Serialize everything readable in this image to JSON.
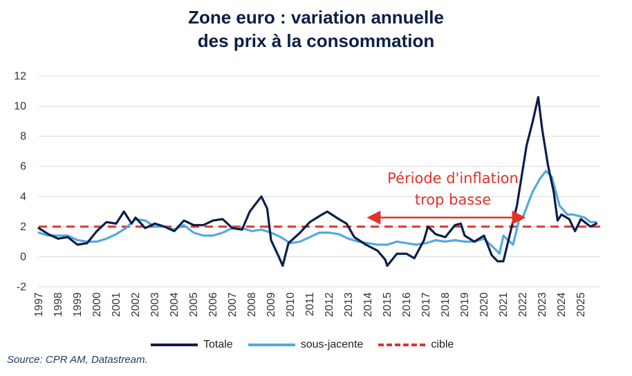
{
  "title_lines": [
    "Zone euro : variation annuelle",
    "des prix à la consommation"
  ],
  "source": "Source: CPR AM, Datastream.",
  "chart_data": {
    "type": "line",
    "title": "Zone euro : variation annuelle des prix à la consommation",
    "xlabel": "",
    "ylabel": "",
    "xlim": [
      1997,
      2026
    ],
    "ylim": [
      -2,
      12
    ],
    "y_ticks": [
      "-2",
      "0",
      "2",
      "4",
      "6",
      "8",
      "10",
      "12"
    ],
    "x_ticks": [
      "1997",
      "1998",
      "1999",
      "2000",
      "2001",
      "2002",
      "2003",
      "2004",
      "2005",
      "2006",
      "2007",
      "2008",
      "2009",
      "2010",
      "2011",
      "2012",
      "2013",
      "2014",
      "2015",
      "2016",
      "2017",
      "2018",
      "2019",
      "2020",
      "2021",
      "2022",
      "2023",
      "2024",
      "2025"
    ],
    "grid": "horizontal",
    "legend_position": "bottom",
    "series": [
      {
        "name": "Totale",
        "color": "#0b1e47",
        "points": [
          [
            1997.0,
            1.9
          ],
          [
            1997.5,
            1.5
          ],
          [
            1998.0,
            1.2
          ],
          [
            1998.5,
            1.3
          ],
          [
            1999.0,
            0.8
          ],
          [
            1999.5,
            0.9
          ],
          [
            2000.0,
            1.7
          ],
          [
            2000.5,
            2.3
          ],
          [
            2001.0,
            2.2
          ],
          [
            2001.4,
            3.0
          ],
          [
            2001.8,
            2.2
          ],
          [
            2002.0,
            2.6
          ],
          [
            2002.5,
            1.9
          ],
          [
            2003.0,
            2.2
          ],
          [
            2003.5,
            2.0
          ],
          [
            2004.0,
            1.7
          ],
          [
            2004.5,
            2.4
          ],
          [
            2005.0,
            2.1
          ],
          [
            2005.5,
            2.1
          ],
          [
            2006.0,
            2.4
          ],
          [
            2006.5,
            2.5
          ],
          [
            2007.0,
            1.9
          ],
          [
            2007.5,
            1.8
          ],
          [
            2007.9,
            3.0
          ],
          [
            2008.2,
            3.5
          ],
          [
            2008.5,
            4.0
          ],
          [
            2008.8,
            3.2
          ],
          [
            2009.0,
            1.1
          ],
          [
            2009.4,
            0.0
          ],
          [
            2009.6,
            -0.6
          ],
          [
            2009.9,
            0.9
          ],
          [
            2010.5,
            1.6
          ],
          [
            2011.0,
            2.3
          ],
          [
            2011.5,
            2.7
          ],
          [
            2011.9,
            3.0
          ],
          [
            2012.5,
            2.5
          ],
          [
            2012.9,
            2.2
          ],
          [
            2013.3,
            1.3
          ],
          [
            2013.9,
            0.8
          ],
          [
            2014.5,
            0.4
          ],
          [
            2014.9,
            -0.2
          ],
          [
            2015.0,
            -0.6
          ],
          [
            2015.5,
            0.2
          ],
          [
            2016.0,
            0.2
          ],
          [
            2016.4,
            -0.1
          ],
          [
            2016.9,
            1.1
          ],
          [
            2017.1,
            2.0
          ],
          [
            2017.5,
            1.5
          ],
          [
            2018.0,
            1.3
          ],
          [
            2018.5,
            2.1
          ],
          [
            2018.8,
            2.2
          ],
          [
            2019.0,
            1.4
          ],
          [
            2019.5,
            1.0
          ],
          [
            2020.0,
            1.4
          ],
          [
            2020.4,
            0.1
          ],
          [
            2020.7,
            -0.3
          ],
          [
            2021.0,
            -0.3
          ],
          [
            2021.3,
            1.3
          ],
          [
            2021.7,
            3.4
          ],
          [
            2021.9,
            5.0
          ],
          [
            2022.2,
            7.4
          ],
          [
            2022.5,
            8.9
          ],
          [
            2022.8,
            10.6
          ],
          [
            2023.0,
            8.5
          ],
          [
            2023.3,
            6.1
          ],
          [
            2023.6,
            4.3
          ],
          [
            2023.8,
            2.4
          ],
          [
            2024.0,
            2.8
          ],
          [
            2024.4,
            2.5
          ],
          [
            2024.7,
            1.7
          ],
          [
            2025.0,
            2.5
          ],
          [
            2025.5,
            2.0
          ],
          [
            2025.8,
            2.2
          ]
        ]
      },
      {
        "name": "sous-jacente",
        "color": "#52a9de",
        "points": [
          [
            1997.0,
            1.6
          ],
          [
            1997.5,
            1.4
          ],
          [
            1998.0,
            1.4
          ],
          [
            1998.5,
            1.4
          ],
          [
            1999.0,
            1.1
          ],
          [
            1999.5,
            1.0
          ],
          [
            2000.0,
            1.0
          ],
          [
            2000.5,
            1.2
          ],
          [
            2001.0,
            1.5
          ],
          [
            2001.5,
            1.9
          ],
          [
            2002.0,
            2.5
          ],
          [
            2002.5,
            2.4
          ],
          [
            2003.0,
            2.0
          ],
          [
            2003.5,
            2.0
          ],
          [
            2004.0,
            1.8
          ],
          [
            2004.5,
            2.1
          ],
          [
            2005.0,
            1.6
          ],
          [
            2005.5,
            1.4
          ],
          [
            2006.0,
            1.4
          ],
          [
            2006.5,
            1.6
          ],
          [
            2007.0,
            1.9
          ],
          [
            2007.5,
            1.9
          ],
          [
            2008.0,
            1.7
          ],
          [
            2008.5,
            1.8
          ],
          [
            2009.0,
            1.6
          ],
          [
            2009.5,
            1.3
          ],
          [
            2010.0,
            0.9
          ],
          [
            2010.5,
            1.0
          ],
          [
            2011.0,
            1.3
          ],
          [
            2011.5,
            1.6
          ],
          [
            2012.0,
            1.6
          ],
          [
            2012.5,
            1.5
          ],
          [
            2013.0,
            1.2
          ],
          [
            2013.5,
            1.0
          ],
          [
            2014.0,
            0.9
          ],
          [
            2014.5,
            0.8
          ],
          [
            2015.0,
            0.8
          ],
          [
            2015.5,
            1.0
          ],
          [
            2016.0,
            0.9
          ],
          [
            2016.5,
            0.8
          ],
          [
            2017.0,
            0.9
          ],
          [
            2017.5,
            1.1
          ],
          [
            2018.0,
            1.0
          ],
          [
            2018.5,
            1.1
          ],
          [
            2019.0,
            1.0
          ],
          [
            2019.5,
            1.0
          ],
          [
            2020.0,
            1.2
          ],
          [
            2020.5,
            0.6
          ],
          [
            2020.8,
            0.2
          ],
          [
            2021.0,
            1.4
          ],
          [
            2021.5,
            0.8
          ],
          [
            2021.8,
            2.4
          ],
          [
            2022.0,
            2.6
          ],
          [
            2022.5,
            4.3
          ],
          [
            2022.9,
            5.2
          ],
          [
            2023.2,
            5.7
          ],
          [
            2023.5,
            5.3
          ],
          [
            2023.9,
            3.4
          ],
          [
            2024.3,
            2.8
          ],
          [
            2024.6,
            2.8
          ],
          [
            2024.9,
            2.7
          ],
          [
            2025.2,
            2.6
          ],
          [
            2025.5,
            2.3
          ],
          [
            2025.8,
            2.3
          ]
        ]
      },
      {
        "name": "cible",
        "color": "#e2322b",
        "dashed": true,
        "points": [
          [
            1997.0,
            2.0
          ],
          [
            2026.0,
            2.0
          ]
        ]
      }
    ],
    "annotations": [
      {
        "text_lines": [
          "Période d'inflation",
          "trop basse"
        ],
        "arrow_from": [
          2014.3,
          2.6
        ],
        "arrow_to": [
          2021.8,
          2.6
        ],
        "color": "#e2322b"
      }
    ]
  }
}
